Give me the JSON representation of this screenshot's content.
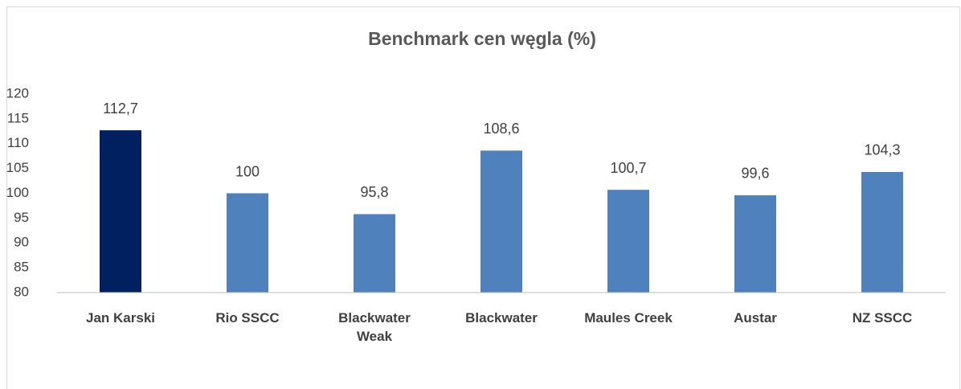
{
  "chart_data": {
    "type": "bar",
    "title": "Benchmark cen węgla (%)",
    "categories": [
      "Jan Karski",
      "Rio SSCC",
      "Blackwater Weak",
      "Blackwater",
      "Maules Creek",
      "Austar",
      "NZ SSCC"
    ],
    "values": [
      112.7,
      100,
      95.8,
      108.6,
      100.7,
      99.6,
      104.3
    ],
    "value_labels": [
      "112,7",
      "100",
      "95,8",
      "108,6",
      "100,7",
      "99,6",
      "104,3"
    ],
    "colors": [
      "#002060",
      "#4f81bd",
      "#4f81bd",
      "#4f81bd",
      "#4f81bd",
      "#4f81bd",
      "#4f81bd"
    ],
    "ylim": [
      80,
      120
    ],
    "yticks": [
      80,
      85,
      90,
      95,
      100,
      105,
      110,
      115,
      120
    ],
    "grid": false
  }
}
